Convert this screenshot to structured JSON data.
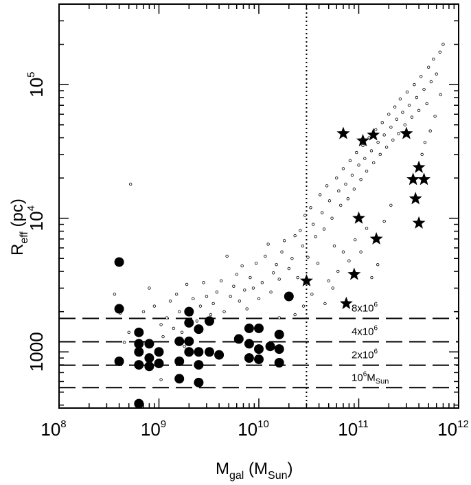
{
  "chart_data": {
    "type": "scatter",
    "title": "",
    "xscale": "log",
    "yscale": "log",
    "xlim": [
      100000000.0,
      1000000000000.0
    ],
    "ylim": [
      380,
      400000
    ],
    "xlabel": {
      "main": "M",
      "sub": "gal",
      "open": " (M",
      "sub2": "Sun",
      "close": ")"
    },
    "ylabel": {
      "main": "R",
      "sub": "eff",
      "rest": " (pc)"
    },
    "x_tick_labels": [
      {
        "value": 100000000.0,
        "base": "10",
        "exp": "8"
      },
      {
        "value": 1000000000.0,
        "base": "10",
        "exp": "9"
      },
      {
        "value": 10000000000.0,
        "base": "10",
        "exp": "10"
      },
      {
        "value": 100000000000.0,
        "base": "10",
        "exp": "11"
      },
      {
        "value": 1000000000000.0,
        "base": "10",
        "exp": "12"
      }
    ],
    "y_tick_labels": [
      {
        "value": 1000,
        "base": "1000",
        "exp": ""
      },
      {
        "value": 10000,
        "base": "10",
        "exp": "4"
      },
      {
        "value": 100000,
        "base": "10",
        "exp": "5"
      }
    ],
    "vertical_line": {
      "x": 30000000000.0,
      "style": "dotted"
    },
    "reference_lines": [
      {
        "y": 1780,
        "label": "8x10",
        "exp": "6",
        "sub": ""
      },
      {
        "y": 1190,
        "label": "4x10",
        "exp": "6",
        "sub": ""
      },
      {
        "y": 795,
        "label": "2x10",
        "exp": "6",
        "sub": ""
      },
      {
        "y": 540,
        "label": "10",
        "exp": "6",
        "sub": "M",
        "sub2": "Sun"
      }
    ],
    "series": [
      {
        "name": "filled circles",
        "marker": "circle-filled",
        "points": [
          [
            400000000.0,
            4700
          ],
          [
            400000000.0,
            2100
          ],
          [
            400000000.0,
            850
          ],
          [
            630000000.0,
            410
          ],
          [
            630000000.0,
            1400
          ],
          [
            630000000.0,
            1150
          ],
          [
            630000000.0,
            1000
          ],
          [
            630000000.0,
            800
          ],
          [
            800000000.0,
            1150
          ],
          [
            800000000.0,
            900
          ],
          [
            800000000.0,
            780
          ],
          [
            1000000000.0,
            1000
          ],
          [
            1000000000.0,
            820
          ],
          [
            1600000000.0,
            850
          ],
          [
            1600000000.0,
            1200
          ],
          [
            1600000000.0,
            630
          ],
          [
            2000000000.0,
            2000
          ],
          [
            2000000000.0,
            1650
          ],
          [
            2000000000.0,
            1200
          ],
          [
            2000000000.0,
            1000
          ],
          [
            2500000000.0,
            1480
          ],
          [
            2500000000.0,
            1000
          ],
          [
            2500000000.0,
            800
          ],
          [
            2500000000.0,
            590
          ],
          [
            3200000000.0,
            1700
          ],
          [
            3200000000.0,
            1000
          ],
          [
            4000000000.0,
            950
          ],
          [
            6300000000.0,
            1250
          ],
          [
            8000000000.0,
            1500
          ],
          [
            8000000000.0,
            1150
          ],
          [
            8000000000.0,
            900
          ],
          [
            10000000000.0,
            1500
          ],
          [
            10000000000.0,
            1050
          ],
          [
            10000000000.0,
            880
          ],
          [
            13000000000.0,
            1100
          ],
          [
            16000000000.0,
            1350
          ],
          [
            16000000000.0,
            1050
          ],
          [
            16000000000.0,
            830
          ],
          [
            20000000000.0,
            2600
          ]
        ]
      },
      {
        "name": "stars",
        "marker": "star-filled",
        "points": [
          [
            30000000000.0,
            3400
          ],
          [
            70000000000.0,
            43000
          ],
          [
            110000000000.0,
            38000
          ],
          [
            140000000000.0,
            42000
          ],
          [
            300000000000.0,
            43000
          ],
          [
            400000000000.0,
            24000
          ],
          [
            350000000000.0,
            19500
          ],
          [
            450000000000.0,
            19500
          ],
          [
            370000000000.0,
            14000
          ],
          [
            100000000000.0,
            10000
          ],
          [
            400000000000.0,
            9200
          ],
          [
            150000000000.0,
            7000
          ],
          [
            90000000000.0,
            3800
          ],
          [
            75000000000.0,
            2300
          ]
        ]
      },
      {
        "name": "open circles",
        "marker": "circle-open",
        "points": [
          [
            520000000.0,
            18000
          ],
          [
            360000000.0,
            2700
          ],
          [
            410000000.0,
            1950
          ],
          [
            450000000.0,
            1180
          ],
          [
            500000000.0,
            1400
          ],
          [
            700000000.0,
            2000
          ],
          [
            800000000.0,
            3000
          ],
          [
            900000000.0,
            2200
          ],
          [
            1050000000.0,
            1600
          ],
          [
            1100000000.0,
            1300
          ],
          [
            1050000000.0,
            620
          ],
          [
            1200000000.0,
            1800
          ],
          [
            1300000000.0,
            2400
          ],
          [
            1400000000.0,
            1500
          ],
          [
            1500000000.0,
            2700
          ],
          [
            1600000000.0,
            2000
          ],
          [
            1700000000.0,
            1400
          ],
          [
            1800000000.0,
            1100
          ],
          [
            1900000000.0,
            3200
          ],
          [
            2100000000.0,
            1900
          ],
          [
            2200000000.0,
            2500
          ],
          [
            2400000000.0,
            1700
          ],
          [
            2600000000.0,
            2200
          ],
          [
            2800000000.0,
            3300
          ],
          [
            3000000000.0,
            2600
          ],
          [
            3300000000.0,
            1900
          ],
          [
            3500000000.0,
            2300
          ],
          [
            3800000000.0,
            2800
          ],
          [
            4200000000.0,
            3400
          ],
          [
            4500000000.0,
            2000
          ],
          [
            4800000000.0,
            5200
          ],
          [
            5200000000.0,
            2600
          ],
          [
            5600000000.0,
            3100
          ],
          [
            6000000000.0,
            3800
          ],
          [
            6400000000.0,
            2400
          ],
          [
            6800000000.0,
            4400
          ],
          [
            7200000000.0,
            2900
          ],
          [
            7600000000.0,
            2100
          ],
          [
            8200000000.0,
            3600
          ],
          [
            8800000000.0,
            3000
          ],
          [
            9400000000.0,
            4600
          ],
          [
            10000000000.0,
            2500
          ],
          [
            10800000000.0,
            3300
          ],
          [
            11600000000.0,
            5200
          ],
          [
            12400000000.0,
            6400
          ],
          [
            13200000000.0,
            2800
          ],
          [
            14000000000.0,
            3900
          ],
          [
            15000000000.0,
            4500
          ],
          [
            16000000000.0,
            3500
          ],
          [
            17000000000.0,
            5600
          ],
          [
            18000000000.0,
            6800
          ],
          [
            19000000000.0,
            2500
          ],
          [
            20000000000.0,
            4200
          ],
          [
            21500000000.0,
            5000
          ],
          [
            23000000000.0,
            7400
          ],
          [
            24500000000.0,
            3600
          ],
          [
            26000000000.0,
            8100
          ],
          [
            27500000000.0,
            6200
          ],
          [
            29000000000.0,
            10500
          ],
          [
            31000000000.0,
            5100
          ],
          [
            33000000000.0,
            12000
          ],
          [
            35000000000.0,
            9000
          ],
          [
            37000000000.0,
            7300
          ],
          [
            39000000000.0,
            4600
          ],
          [
            41000000000.0,
            15000
          ],
          [
            43000000000.0,
            11000
          ],
          [
            45000000000.0,
            8300
          ],
          [
            48000000000.0,
            17500
          ],
          [
            51000000000.0,
            13500
          ],
          [
            54000000000.0,
            10000
          ],
          [
            57000000000.0,
            6200
          ],
          [
            60000000000.0,
            20000
          ],
          [
            63000000000.0,
            16000
          ],
          [
            66000000000.0,
            12500
          ],
          [
            70000000000.0,
            23500
          ],
          [
            74000000000.0,
            18000
          ],
          [
            78000000000.0,
            14000
          ],
          [
            82000000000.0,
            27000
          ],
          [
            86000000000.0,
            21000
          ],
          [
            90000000000.0,
            16500
          ],
          [
            95000000000.0,
            31000
          ],
          [
            100000000000.0,
            25000
          ],
          [
            105000000000.0,
            19500
          ],
          [
            110000000000.0,
            35000
          ],
          [
            115000000000.0,
            28000
          ],
          [
            120000000000.0,
            22500
          ],
          [
            127000000000.0,
            40000
          ],
          [
            134000000000.0,
            32000
          ],
          [
            141000000000.0,
            26000
          ],
          [
            148000000000.0,
            46000
          ],
          [
            156000000000.0,
            37000
          ],
          [
            164000000000.0,
            30000
          ],
          [
            172000000000.0,
            52000
          ],
          [
            180000000000.0,
            42000
          ],
          [
            190000000000.0,
            34000
          ],
          [
            200000000000.0,
            60000
          ],
          [
            210000000000.0,
            48000
          ],
          [
            220000000000.0,
            38500
          ],
          [
            230000000000.0,
            68000
          ],
          [
            240000000000.0,
            55000
          ],
          [
            250000000000.0,
            43000
          ],
          [
            260000000000.0,
            78000
          ],
          [
            275000000000.0,
            62000
          ],
          [
            290000000000.0,
            50000
          ],
          [
            305000000000.0,
            88000
          ],
          [
            320000000000.0,
            70000
          ],
          [
            340000000000.0,
            57000
          ],
          [
            360000000000.0,
            100000
          ],
          [
            380000000000.0,
            80000
          ],
          [
            400000000000.0,
            64000
          ],
          [
            420000000000.0,
            115000
          ],
          [
            450000000000.0,
            92000
          ],
          [
            480000000000.0,
            72000
          ],
          [
            500000000000.0,
            135000
          ],
          [
            530000000000.0,
            105000
          ],
          [
            560000000000.0,
            155000
          ],
          [
            600000000000.0,
            120000
          ],
          [
            650000000000.0,
            175000
          ],
          [
            700000000000.0,
            200000
          ],
          [
            660000000000.0,
            84000
          ],
          [
            580000000000.0,
            58000
          ],
          [
            520000000000.0,
            45000
          ],
          [
            460000000000.0,
            37000
          ],
          [
            430000000000.0,
            30000
          ],
          [
            180000000000.0,
            9500
          ],
          [
            210000000000.0,
            12500
          ],
          [
            120000000000.0,
            8400
          ],
          [
            105000000000.0,
            5600
          ],
          [
            92000000000.0,
            6900
          ],
          [
            80000000000.0,
            4800
          ],
          [
            70000000000.0,
            5600
          ],
          [
            62000000000.0,
            4000
          ],
          [
            55000000000.0,
            3000
          ],
          [
            50000000000.0,
            3400
          ],
          [
            46000000000.0,
            2300
          ],
          [
            155000000000.0,
            4500
          ],
          [
            135000000000.0,
            3600
          ],
          [
            23000000000.0,
            1900
          ],
          [
            28000000000.0,
            2200
          ],
          [
            34000000000.0,
            2700
          ],
          [
            16000000000.0,
            1800
          ]
        ]
      }
    ]
  }
}
